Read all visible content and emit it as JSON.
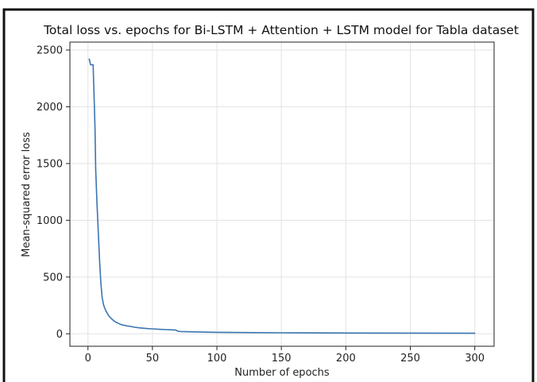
{
  "chart_data": {
    "type": "line",
    "title": "Total loss vs. epochs for Bi-LSTM + Attention + LSTM model for Tabla dataset",
    "xlabel": "Number of epochs",
    "ylabel": "Mean-squared error loss",
    "xlim": [
      -14,
      315
    ],
    "ylim": [
      -110,
      2570
    ],
    "xticks": [
      0,
      50,
      100,
      150,
      200,
      250,
      300
    ],
    "yticks": [
      0,
      500,
      1000,
      1500,
      2000,
      2500
    ],
    "grid": true,
    "line_color": "#3a75b0",
    "series": [
      {
        "x": [
          1,
          2,
          3,
          4,
          5,
          5.5,
          6,
          7,
          8,
          9,
          10,
          11,
          12,
          13,
          14,
          15,
          16,
          18,
          20,
          22,
          24,
          26,
          28,
          30,
          33,
          36,
          40,
          45,
          50,
          55,
          60,
          65,
          68,
          70,
          72,
          75,
          80,
          90,
          100,
          120,
          150,
          200,
          250,
          300
        ],
        "y": [
          2420,
          2370,
          2370,
          2370,
          2000,
          1800,
          1450,
          1150,
          900,
          650,
          450,
          320,
          260,
          225,
          200,
          180,
          160,
          135,
          115,
          100,
          90,
          80,
          75,
          70,
          65,
          58,
          52,
          47,
          43,
          40,
          37,
          35,
          33,
          22,
          20,
          19,
          17,
          15,
          13,
          11,
          9,
          7,
          6,
          5
        ]
      }
    ]
  }
}
